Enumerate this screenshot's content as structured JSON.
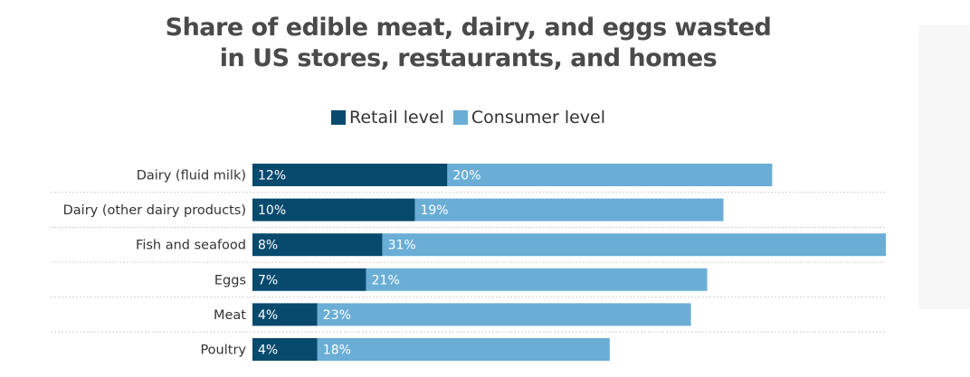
{
  "title_lines": [
    "Share of edible meat, dairy, and eggs wasted",
    "in US stores, restaurants, and homes"
  ],
  "legend": [
    {
      "label": "Retail level",
      "color": "#084a6e"
    },
    {
      "label": "Consumer level",
      "color": "#6aaed6"
    }
  ],
  "chart_data": {
    "type": "bar",
    "orientation": "horizontal",
    "stacked": true,
    "title": "Share of edible meat, dairy, and eggs wasted in US stores, restaurants, and homes",
    "categories": [
      "Dairy (fluid milk)",
      "Dairy (other dairy products)",
      "Fish and seafood",
      "Eggs",
      "Meat",
      "Poultry"
    ],
    "series": [
      {
        "name": "Retail level",
        "color": "#084a6e",
        "values": [
          12,
          10,
          8,
          7,
          4,
          4
        ],
        "labels": [
          "12%",
          "10%",
          "8%",
          "7%",
          "4%",
          "4%"
        ]
      },
      {
        "name": "Consumer level",
        "color": "#6aaed6",
        "values": [
          20,
          19,
          31,
          21,
          23,
          18
        ],
        "labels": [
          "20%",
          "19%",
          "31%",
          "21%",
          "23%",
          "18%"
        ]
      }
    ],
    "xlim": [
      0,
      39
    ],
    "grid": false,
    "legend_position": "top-center"
  }
}
